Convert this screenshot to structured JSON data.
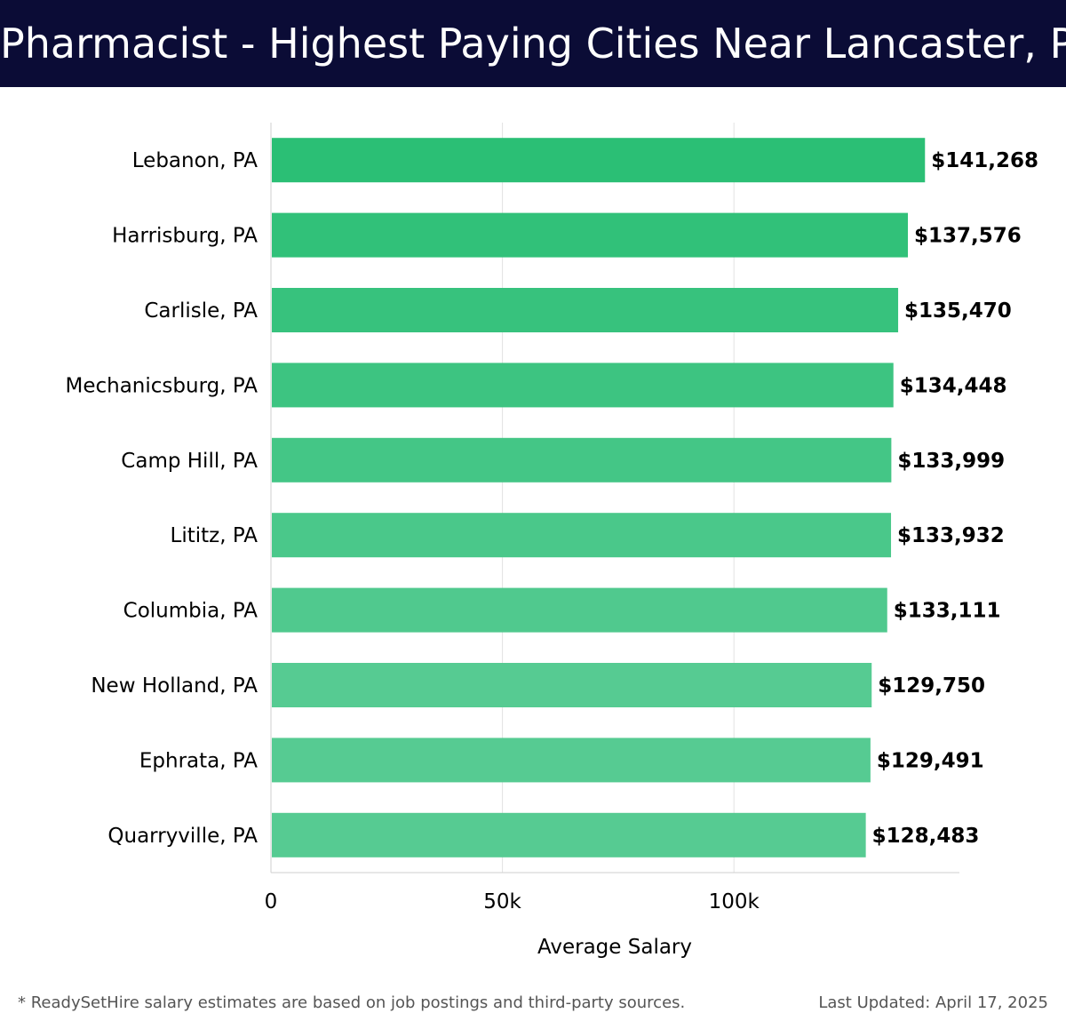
{
  "header": {
    "title": "Pharmacist - Highest Paying Cities Near Lancaster, PA"
  },
  "chart_data": {
    "type": "bar",
    "orientation": "horizontal",
    "title": "Pharmacist - Highest Paying Cities Near Lancaster, PA",
    "xlabel": "Average Salary",
    "ylabel": "",
    "categories": [
      "Lebanon, PA",
      "Harrisburg, PA",
      "Carlisle, PA",
      "Mechanicsburg, PA",
      "Camp Hill, PA",
      "Lititz, PA",
      "Columbia, PA",
      "New Holland, PA",
      "Ephrata, PA",
      "Quarryville, PA"
    ],
    "values": [
      141268,
      137576,
      135470,
      134448,
      133999,
      133932,
      133111,
      129750,
      129491,
      128483
    ],
    "value_labels": [
      "$141,268",
      "$137,576",
      "$135,470",
      "$134,448",
      "$133,999",
      "$133,932",
      "$133,111",
      "$129,750",
      "$129,491",
      "$128,483"
    ],
    "xlim": [
      0,
      148700
    ],
    "xticks": [
      0,
      50000,
      100000
    ],
    "xtick_labels": [
      "0",
      "50k",
      "100k"
    ],
    "grid": true,
    "bar_color_top": "#2bbf75",
    "bar_color_bottom": "#56cb92"
  },
  "footer": {
    "footnote": "* ReadySetHire salary estimates are based on job postings and third-party sources.",
    "updated": "Last Updated: April 17, 2025"
  }
}
